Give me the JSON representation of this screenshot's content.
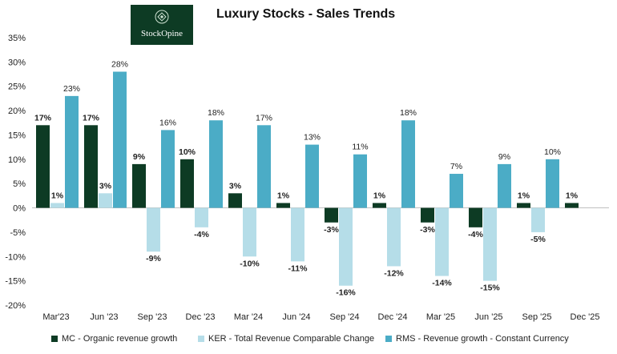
{
  "logo": {
    "text": "StockOpine",
    "color": "#0d3b24"
  },
  "chart_data": {
    "type": "bar",
    "title": "Luxury Stocks - Sales Trends",
    "categories": [
      "Mar'23",
      "Jun '23",
      "Sep '23",
      "Dec '23",
      "Mar '24",
      "Jun '24",
      "Sep '24",
      "Dec '24",
      "Mar '25",
      "Jun '25",
      "Sep '25",
      "Dec '25"
    ],
    "series": [
      {
        "name": "MC - Organic revenue growth",
        "color": "#0d3b24",
        "bold_labels": true,
        "values": [
          17,
          17,
          9,
          10,
          3,
          1,
          -3,
          1,
          -3,
          -4,
          1,
          1
        ]
      },
      {
        "name": "KER - Total Revenue Comparable Change",
        "color": "#b5dde8",
        "bold_labels": true,
        "values": [
          1,
          3,
          -9,
          -4,
          -10,
          -11,
          -16,
          -12,
          -14,
          -15,
          -5,
          null
        ]
      },
      {
        "name": "RMS - Revenue growth - Constant Currency",
        "color": "#4bacc6",
        "bold_labels": false,
        "values": [
          23,
          28,
          16,
          18,
          17,
          13,
          11,
          18,
          7,
          9,
          10,
          null
        ]
      }
    ],
    "ylim": [
      -20,
      35
    ],
    "yticks": [
      -20,
      -15,
      -10,
      -5,
      0,
      5,
      10,
      15,
      20,
      25,
      30,
      35
    ],
    "tick_format": "percent",
    "xlabel": "",
    "ylabel": "",
    "legend_position": "bottom",
    "grid": false
  }
}
